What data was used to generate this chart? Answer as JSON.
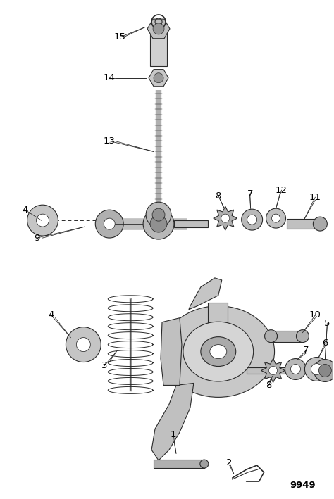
{
  "bg_color": "#ffffff",
  "line_color": "#2a2a2a",
  "figsize": [
    4.74,
    7.09
  ],
  "dpi": 100,
  "part_label": "9949",
  "gray_light": "#d0d0d0",
  "gray_mid": "#aaaaaa",
  "gray_dark": "#777777",
  "gray_body": "#c0c0c0"
}
